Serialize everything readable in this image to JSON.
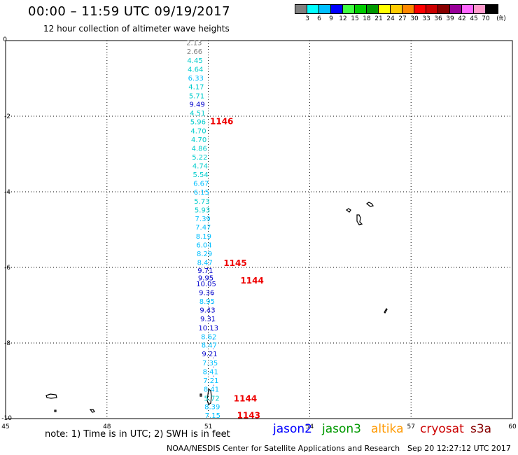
{
  "header": {
    "title": "00:00 – 11:59 UTC 09/19/2017",
    "subtitle": "12 hour collection of altimeter wave heights"
  },
  "colorbar": {
    "colors": [
      "#808080",
      "#00ffff",
      "#00bfff",
      "#0000ff",
      "#40ff40",
      "#00cc00",
      "#009900",
      "#ffff00",
      "#ffcc00",
      "#ff8800",
      "#ff0000",
      "#cc0000",
      "#880000",
      "#990099",
      "#ff66ff",
      "#ff99cc",
      "#000000"
    ],
    "labels": [
      "3",
      "6",
      "9",
      "12",
      "15",
      "18",
      "21",
      "24",
      "27",
      "30",
      "33",
      "36",
      "39",
      "42",
      "45",
      "70",
      "(ft)"
    ]
  },
  "map": {
    "x_ticks": [
      "45",
      "48",
      "51",
      "54",
      "57",
      "60"
    ],
    "y_ticks": [
      "0",
      "-2",
      "-4",
      "-6",
      "-8",
      "-10"
    ],
    "lon_range": [
      45,
      60
    ],
    "lat_range": [
      -10,
      0
    ],
    "wave_heights": [
      {
        "lat": -0.05,
        "value": "2.13",
        "color": "#808080"
      },
      {
        "lat": -0.28,
        "value": "2.66",
        "color": "#808080"
      },
      {
        "lat": -0.52,
        "value": "4.45",
        "color": "#00cccc"
      },
      {
        "lat": -0.75,
        "value": "4.64",
        "color": "#00cccc"
      },
      {
        "lat": -0.98,
        "value": "6.33",
        "color": "#00bfff"
      },
      {
        "lat": -1.21,
        "value": "4.17",
        "color": "#00cccc"
      },
      {
        "lat": -1.45,
        "value": "5.71",
        "color": "#00cccc"
      },
      {
        "lat": -1.68,
        "value": "9.49",
        "color": "#0000cc"
      },
      {
        "lat": -1.91,
        "value": "4.51",
        "color": "#00cccc"
      },
      {
        "lat": -2.14,
        "value": "5.96",
        "color": "#00cccc"
      },
      {
        "lat": -2.38,
        "value": "4.70",
        "color": "#00cccc"
      },
      {
        "lat": -2.61,
        "value": "4.70",
        "color": "#00cccc"
      },
      {
        "lat": -2.84,
        "value": "4.86",
        "color": "#00cccc"
      },
      {
        "lat": -3.07,
        "value": "5.22",
        "color": "#00cccc"
      },
      {
        "lat": -3.31,
        "value": "4.74",
        "color": "#00cccc"
      },
      {
        "lat": -3.54,
        "value": "5.54",
        "color": "#00cccc"
      },
      {
        "lat": -3.77,
        "value": "6.67",
        "color": "#00bfff"
      },
      {
        "lat": -4.0,
        "value": "6.15",
        "color": "#00bfff"
      },
      {
        "lat": -4.24,
        "value": "5.73",
        "color": "#00cccc"
      },
      {
        "lat": -4.47,
        "value": "5.93",
        "color": "#00cccc"
      },
      {
        "lat": -4.7,
        "value": "7.39",
        "color": "#00bfff"
      },
      {
        "lat": -4.93,
        "value": "7.47",
        "color": "#00bfff"
      },
      {
        "lat": -5.17,
        "value": "8.19",
        "color": "#00bfff"
      },
      {
        "lat": -5.4,
        "value": "6.04",
        "color": "#00bfff"
      },
      {
        "lat": -5.63,
        "value": "8.29",
        "color": "#00bfff"
      },
      {
        "lat": -5.86,
        "value": "8.47",
        "color": "#00bfff"
      },
      {
        "lat": -6.07,
        "value": "9.71",
        "color": "#0000cc"
      },
      {
        "lat": -6.27,
        "value": "9.95",
        "color": "#0000cc"
      },
      {
        "lat": -6.43,
        "value": "10.05",
        "color": "#0000cc"
      },
      {
        "lat": -6.66,
        "value": "9.36",
        "color": "#0000cc"
      },
      {
        "lat": -6.89,
        "value": "8.95",
        "color": "#00bfff"
      },
      {
        "lat": -7.12,
        "value": "9.43",
        "color": "#0000cc"
      },
      {
        "lat": -7.35,
        "value": "9.31",
        "color": "#0000cc"
      },
      {
        "lat": -7.59,
        "value": "10.13",
        "color": "#0000cc"
      },
      {
        "lat": -7.82,
        "value": "8.62",
        "color": "#00bfff"
      },
      {
        "lat": -8.05,
        "value": "8.47",
        "color": "#00bfff"
      },
      {
        "lat": -8.28,
        "value": "9.21",
        "color": "#0000cc"
      },
      {
        "lat": -8.52,
        "value": "7.35",
        "color": "#00bfff"
      },
      {
        "lat": -8.75,
        "value": "8.41",
        "color": "#00bfff"
      },
      {
        "lat": -8.98,
        "value": "7.21",
        "color": "#00bfff"
      },
      {
        "lat": -9.21,
        "value": "8.41",
        "color": "#00bfff"
      },
      {
        "lat": -9.45,
        "value": "5.72",
        "color": "#00cccc"
      },
      {
        "lat": -9.68,
        "value": "8.39",
        "color": "#00bfff"
      },
      {
        "lat": -9.91,
        "value": "7.15",
        "color": "#00bfff"
      }
    ],
    "times": [
      {
        "lat": -2.12,
        "lon": 51.05,
        "value": "1146"
      },
      {
        "lat": -5.87,
        "lon": 51.45,
        "value": "1145"
      },
      {
        "lat": -6.33,
        "lon": 51.95,
        "value": "1144"
      },
      {
        "lat": -9.45,
        "lon": 51.75,
        "value": "1144"
      },
      {
        "lat": -9.9,
        "lon": 51.85,
        "value": "1143"
      }
    ]
  },
  "footer": {
    "note": "note: 1) Time is in UTC; 2) SWH is in feet",
    "legend": [
      {
        "label": "jason2",
        "color": "#0000ff"
      },
      {
        "label": "jason3",
        "color": "#009900"
      },
      {
        "label": "altika",
        "color": "#ff9900"
      },
      {
        "label": "cryosat",
        "color": "#cc0000"
      },
      {
        "label": "s3a",
        "color": "#880000"
      }
    ],
    "credit": "NOAA/NESDIS Center for Satellite Applications and Research",
    "timestamp": "Sep 20 12:27:12 UTC 2017"
  }
}
